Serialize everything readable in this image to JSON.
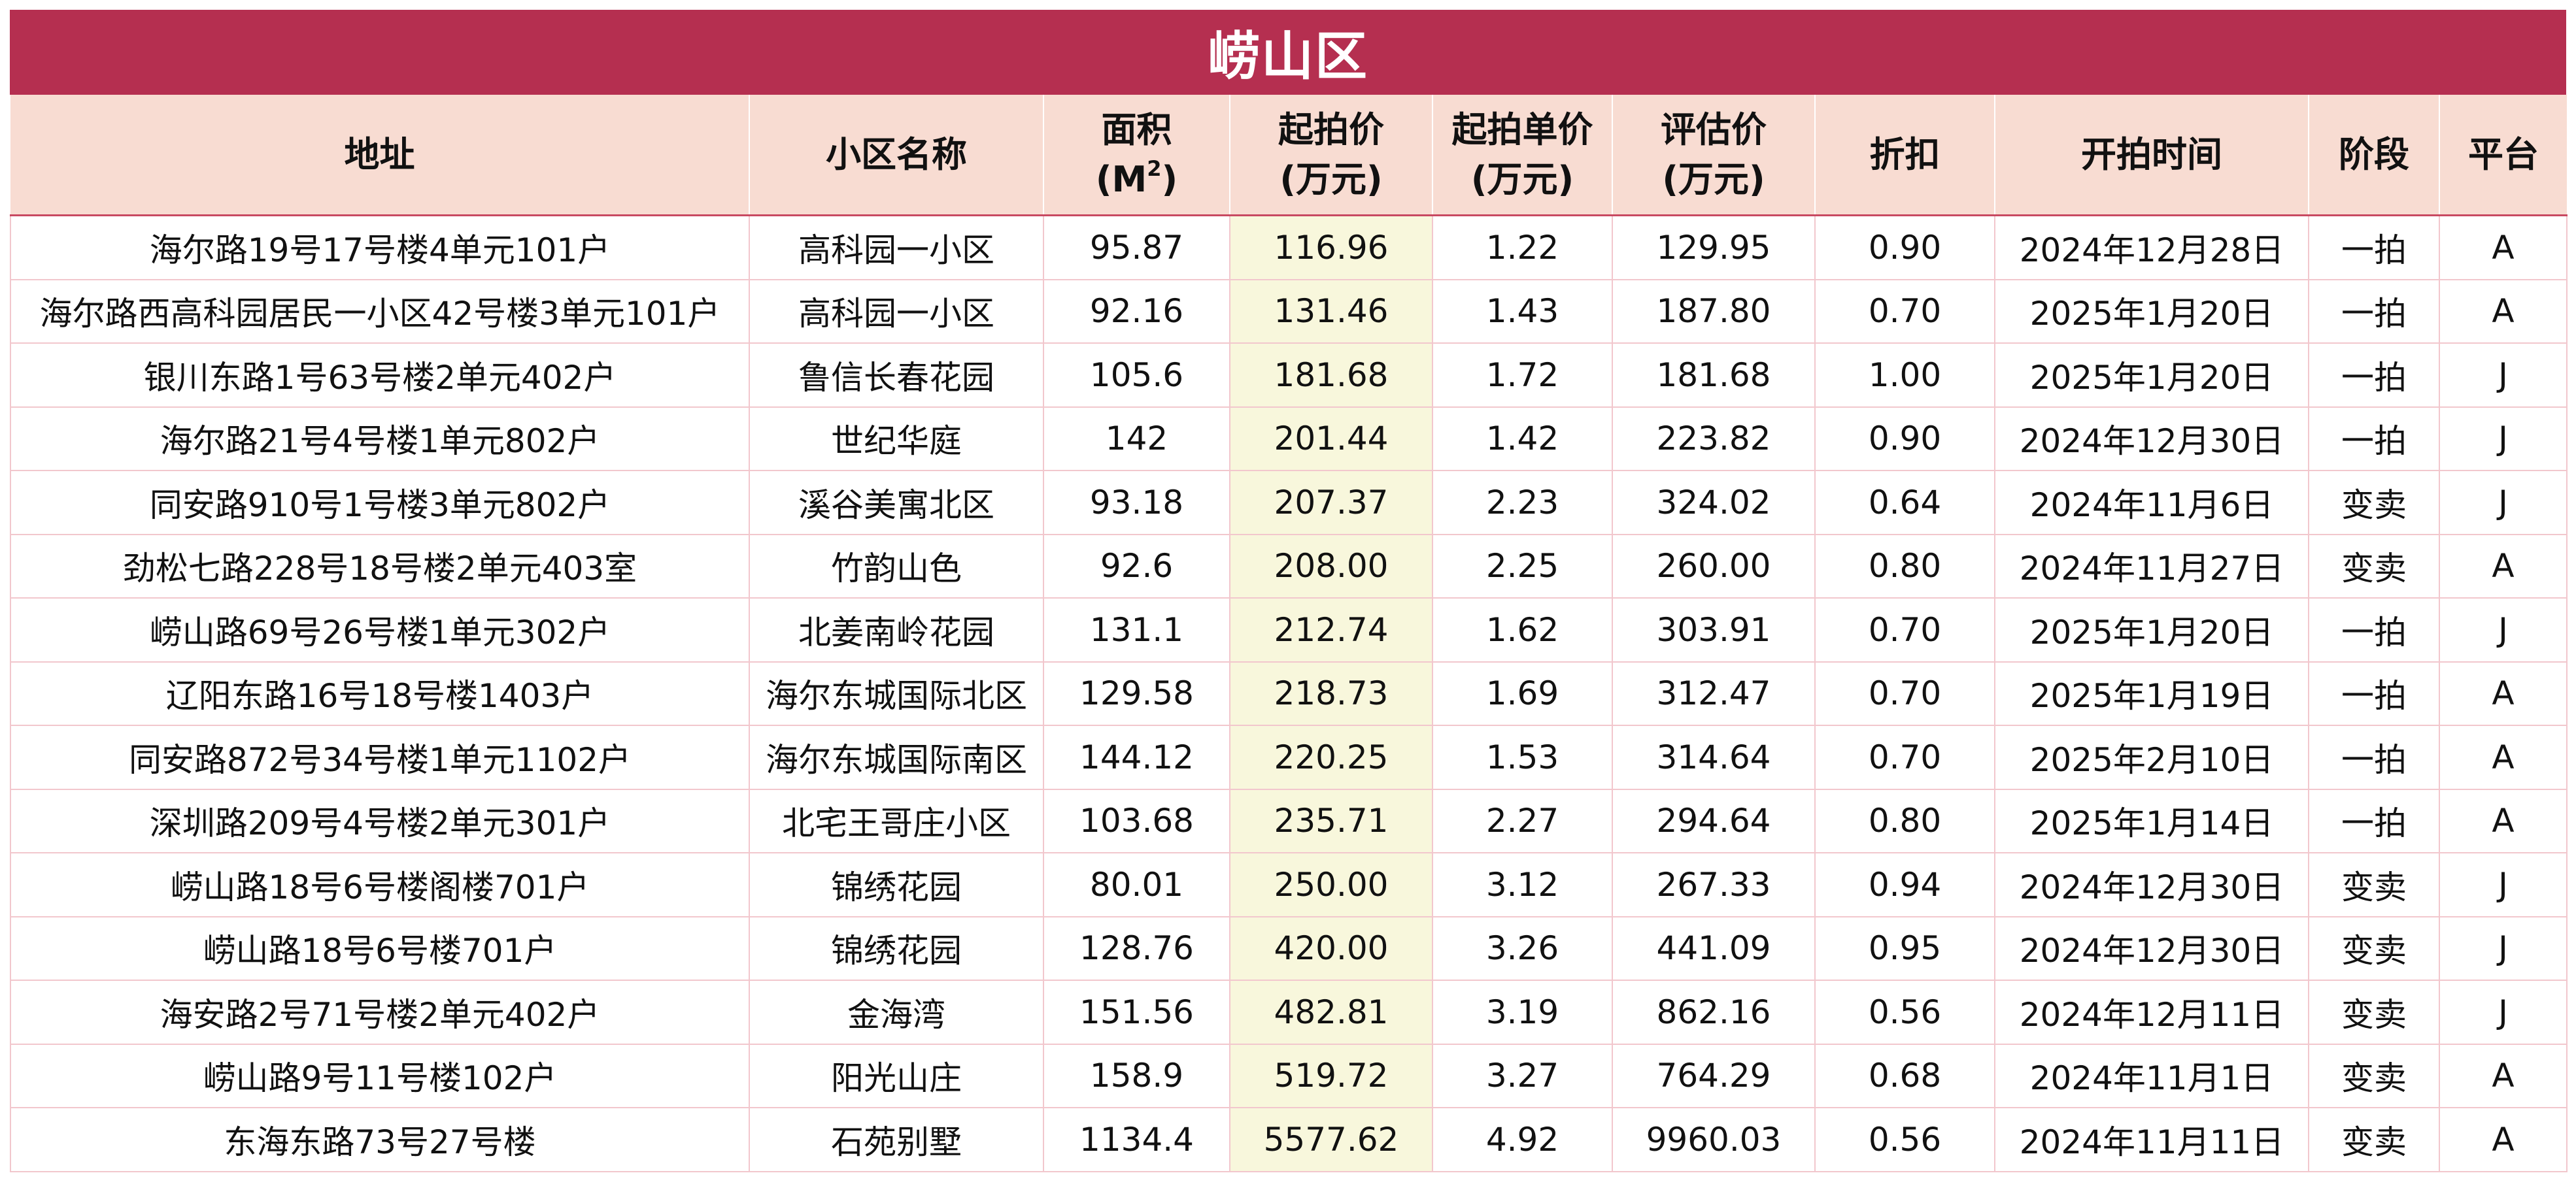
{
  "title": "崂山区",
  "columns": [
    {
      "line1": "地址",
      "line2": ""
    },
    {
      "line1": "小区名称",
      "line2": ""
    },
    {
      "line1": "面积",
      "line2": "(M²)"
    },
    {
      "line1": "起拍价",
      "line2": "(万元)"
    },
    {
      "line1": "起拍单价",
      "line2": "(万元)"
    },
    {
      "line1": "评估价",
      "line2": "(万元)"
    },
    {
      "line1": "折扣",
      "line2": ""
    },
    {
      "line1": "开拍时间",
      "line2": ""
    },
    {
      "line1": "阶段",
      "line2": ""
    },
    {
      "line1": "平台",
      "line2": ""
    }
  ],
  "rows": [
    [
      "海尔路19号17号楼4单元101户",
      "高科园一小区",
      "95.87",
      "116.96",
      "1.22",
      "129.95",
      "0.90",
      "2024年12月28日",
      "一拍",
      "A"
    ],
    [
      "海尔路西高科园居民一小区42号楼3单元101户",
      "高科园一小区",
      "92.16",
      "131.46",
      "1.43",
      "187.80",
      "0.70",
      "2025年1月20日",
      "一拍",
      "A"
    ],
    [
      "银川东路1号63号楼2单元402户",
      "鲁信长春花园",
      "105.6",
      "181.68",
      "1.72",
      "181.68",
      "1.00",
      "2025年1月20日",
      "一拍",
      "J"
    ],
    [
      "海尔路21号4号楼1单元802户",
      "世纪华庭",
      "142",
      "201.44",
      "1.42",
      "223.82",
      "0.90",
      "2024年12月30日",
      "一拍",
      "J"
    ],
    [
      "同安路910号1号楼3单元802户",
      "溪谷美寓北区",
      "93.18",
      "207.37",
      "2.23",
      "324.02",
      "0.64",
      "2024年11月6日",
      "变卖",
      "J"
    ],
    [
      "劲松七路228号18号楼2单元403室",
      "竹韵山色",
      "92.6",
      "208.00",
      "2.25",
      "260.00",
      "0.80",
      "2024年11月27日",
      "变卖",
      "A"
    ],
    [
      "崂山路69号26号楼1单元302户",
      "北姜南岭花园",
      "131.1",
      "212.74",
      "1.62",
      "303.91",
      "0.70",
      "2025年1月20日",
      "一拍",
      "J"
    ],
    [
      "辽阳东路16号18号楼1403户",
      "海尔东城国际北区",
      "129.58",
      "218.73",
      "1.69",
      "312.47",
      "0.70",
      "2025年1月19日",
      "一拍",
      "A"
    ],
    [
      "同安路872号34号楼1单元1102户",
      "海尔东城国际南区",
      "144.12",
      "220.25",
      "1.53",
      "314.64",
      "0.70",
      "2025年2月10日",
      "一拍",
      "A"
    ],
    [
      "深圳路209号4号楼2单元301户",
      "北宅王哥庄小区",
      "103.68",
      "235.71",
      "2.27",
      "294.64",
      "0.80",
      "2025年1月14日",
      "一拍",
      "A"
    ],
    [
      "崂山路18号6号楼阁楼701户",
      "锦绣花园",
      "80.01",
      "250.00",
      "3.12",
      "267.33",
      "0.94",
      "2024年12月30日",
      "变卖",
      "J"
    ],
    [
      "崂山路18号6号楼701户",
      "锦绣花园",
      "128.76",
      "420.00",
      "3.26",
      "441.09",
      "0.95",
      "2024年12月30日",
      "变卖",
      "J"
    ],
    [
      "海安路2号71号楼2单元402户",
      "金海湾",
      "151.56",
      "482.81",
      "3.19",
      "862.16",
      "0.56",
      "2024年12月11日",
      "变卖",
      "J"
    ],
    [
      "崂山路9号11号楼102户",
      "阳光山庄",
      "158.9",
      "519.72",
      "3.27",
      "764.29",
      "0.68",
      "2024年11月1日",
      "变卖",
      "A"
    ],
    [
      "东海东路73号27号楼",
      "石苑别墅",
      "1134.4",
      "5577.62",
      "4.92",
      "9960.03",
      "0.56",
      "2024年11月11日",
      "变卖",
      "A"
    ]
  ],
  "colors": {
    "banner": "#b52f50",
    "header": "#f8dcd2",
    "highlight_column": "#f8f7dc",
    "grid": "#f2c7cd"
  }
}
